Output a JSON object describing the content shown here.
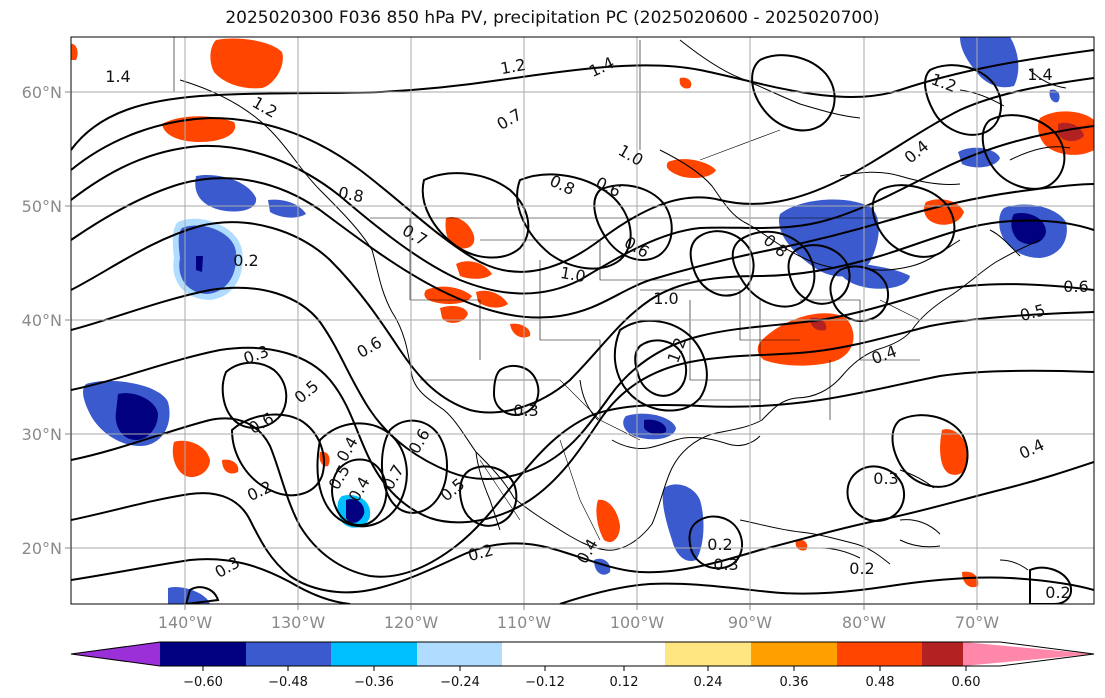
{
  "title": "2025020300 F036 850 hPa PV, precipitation PC (2025020600 - 2025020700)",
  "lon_ticks": [
    "140°W",
    "130°W",
    "120°W",
    "110°W",
    "100°W",
    "90°W",
    "80°W",
    "70°W"
  ],
  "lat_ticks": [
    "60°N",
    "50°N",
    "40°N",
    "30°N",
    "20°N"
  ],
  "contour_labels": [
    "1.4",
    "1.2",
    "0.7",
    "1.2",
    "1.4",
    "0.8",
    "0.8",
    "0.7",
    "1.0",
    "0.6",
    "0.2",
    "1.0",
    "1.0",
    "1.2",
    "0.6",
    "0.3",
    "0.5",
    "0.6",
    "0.4",
    "0.3",
    "0.6",
    "0.4",
    "0.5",
    "0.7",
    "0.6",
    "0.2",
    "0.5",
    "0.3",
    "0.2",
    "0.3",
    "0.2",
    "0.2",
    "0.2",
    "0.6",
    "0.5",
    "0.4",
    "0.4",
    "0.3",
    "1.4",
    "1.2",
    "0.8",
    "0.4",
    "0.4"
  ],
  "colorbar": {
    "ticks": [
      "−0.60",
      "−0.48",
      "−0.36",
      "−0.24",
      "−0.12",
      "0.12",
      "0.24",
      "0.36",
      "0.48",
      "0.60"
    ],
    "colors": {
      "lt_n060": "#9b30d8",
      "n060_n048": "#000080",
      "n048_n036": "#3a5acd",
      "n036_n024": "#00bfff",
      "n024_n012": "#b0dcff",
      "n012_012": "#ffffff",
      "p012_024": "#ffe680",
      "p024_036": "#ffa000",
      "p036_048": "#ff4500",
      "p048_060": "#b22222",
      "gt_060": "#ff88aa"
    }
  }
}
